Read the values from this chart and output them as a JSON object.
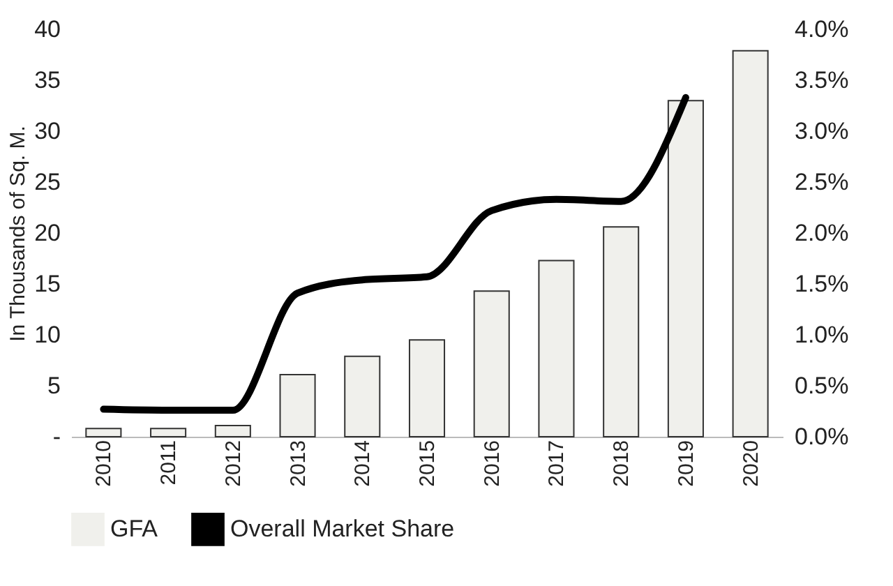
{
  "chart_data": {
    "type": "bar",
    "categories": [
      "2010",
      "2011",
      "2012",
      "2013",
      "2014",
      "2015",
      "2016",
      "2017",
      "2018",
      "2019",
      "2020"
    ],
    "ylabel": "In Thousands of Sq. M.",
    "ylim": [
      0,
      40
    ],
    "yticks": [
      {
        "value": 0,
        "label": "-"
      },
      5,
      10,
      15,
      20,
      25,
      30,
      35,
      40
    ],
    "y2lim": [
      0,
      4
    ],
    "y2ticks": [
      {
        "value": 0,
        "label": "0.0%"
      },
      {
        "value": 0.5,
        "label": "0.5%"
      },
      {
        "value": 1,
        "label": "1.0%"
      },
      {
        "value": 1.5,
        "label": "1.5%"
      },
      {
        "value": 2,
        "label": "2.0%"
      },
      {
        "value": 2.5,
        "label": "2.5%"
      },
      {
        "value": 3,
        "label": "3.0%"
      },
      {
        "value": 3.5,
        "label": "3.5%"
      },
      {
        "value": 4,
        "label": "4.0%"
      }
    ],
    "series": [
      {
        "name": "GFA",
        "color": "#f0f0ec",
        "values": [
          0.8,
          0.8,
          1.1,
          6.1,
          7.9,
          9.5,
          14.3,
          17.3,
          20.6,
          33.0,
          37.9
        ]
      },
      {
        "name": "Overall Market Share",
        "type": "line",
        "axis": "y2",
        "color": "#000000",
        "values": [
          0.27,
          0.26,
          0.26,
          1.41,
          1.54,
          1.57,
          2.22,
          2.33,
          2.31,
          3.33,
          null
        ]
      }
    ],
    "legend": "bottom",
    "grid": false,
    "line_style": "solid",
    "marker": "none"
  }
}
